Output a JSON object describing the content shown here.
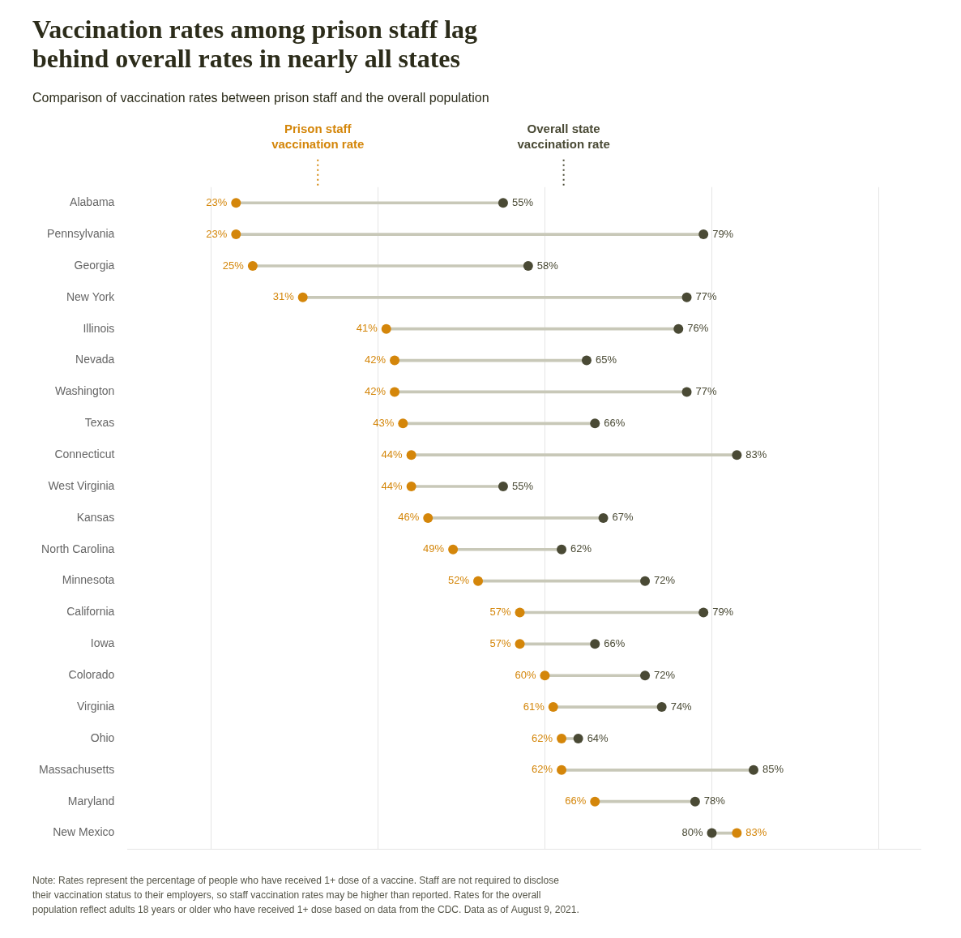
{
  "chart_data": {
    "type": "dumbbell",
    "title": "Vaccination rates among prison staff lag\nbehind overall rates in nearly all states",
    "subtitle": "Comparison of vaccination rates between prison staff and the overall population",
    "annotations": [
      "Note: Rates represent the percentage of people who have received 1+ dose of a vaccine. Staff are not required to disclose\ntheir vaccination status to their employers, so staff vaccination rates may be higher than reported. Rates for the overall\npopulation reflect adults 18 years or older who have received 1+ dose based on data from the CDC. Data as of August 9, 2021."
    ],
    "orientation": "horizontal",
    "categories": [
      "Alabama",
      "Pennsylvania",
      "Georgia",
      "New York",
      "Illinois",
      "Nevada",
      "Washington",
      "Texas",
      "Connecticut",
      "West Virginia",
      "Kansas",
      "North Carolina",
      "Minnesota",
      "California",
      "Iowa",
      "Colorado",
      "Virginia",
      "Ohio",
      "Massachusetts",
      "Maryland",
      "New Mexico"
    ],
    "series": [
      {
        "name": "Prison staff\nvaccination rate",
        "color": "#D4860A",
        "values": [
          23,
          23,
          25,
          31,
          41,
          42,
          42,
          43,
          44,
          44,
          46,
          49,
          52,
          57,
          57,
          60,
          61,
          62,
          62,
          66,
          83
        ],
        "value_labels": [
          "23%",
          "23%",
          "25%",
          "31%",
          "41%",
          "42%",
          "42%",
          "43%",
          "44%",
          "44%",
          "46%",
          "49%",
          "52%",
          "57%",
          "57%",
          "60%",
          "61%",
          "62%",
          "62%",
          "66%",
          "83%"
        ]
      },
      {
        "name": "Overall state\nvaccination rate",
        "color": "#4A4A35",
        "values": [
          55,
          79,
          58,
          77,
          76,
          65,
          77,
          66,
          83,
          55,
          67,
          62,
          72,
          79,
          66,
          72,
          74,
          64,
          85,
          78,
          80
        ],
        "value_labels": [
          "55%",
          "79%",
          "58%",
          "77%",
          "76%",
          "65%",
          "77%",
          "66%",
          "83%",
          "55%",
          "67%",
          "62%",
          "72%",
          "79%",
          "66%",
          "72%",
          "74%",
          "64%",
          "85%",
          "78%",
          "80%"
        ]
      }
    ],
    "color": "#C8C8B8",
    "xlim": [
      10,
      105
    ],
    "xticks": [
      20,
      40,
      60,
      80,
      100
    ],
    "grid": true,
    "tick_labels": "y",
    "data_labels": true
  }
}
